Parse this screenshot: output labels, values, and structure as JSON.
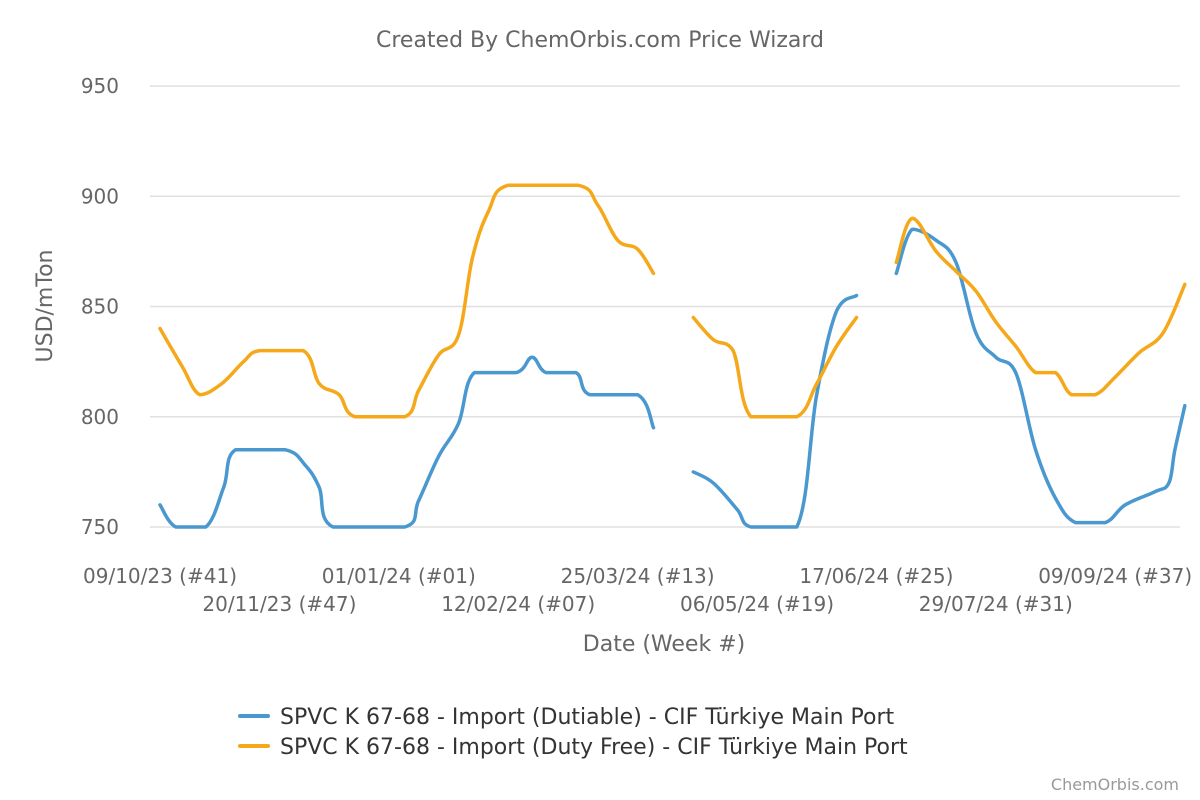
{
  "chart_data": {
    "type": "line",
    "title": "Created By ChemOrbis.com Price Wizard",
    "xlabel": "Date (Week #)",
    "ylabel": "USD/mTon",
    "ylim": [
      750,
      950
    ],
    "yticks": [
      750,
      800,
      850,
      900,
      950
    ],
    "grid": true,
    "legend_position": "bottom",
    "credit": "ChemOrbis.com",
    "x_tick_labels": [
      {
        "week": 0,
        "label": "09/10/23 (#41)"
      },
      {
        "week": 6,
        "label": "20/11/23 (#47)"
      },
      {
        "week": 12,
        "label": "01/01/24 (#01)"
      },
      {
        "week": 18,
        "label": "12/02/24 (#07)"
      },
      {
        "week": 24,
        "label": "25/03/24 (#13)"
      },
      {
        "week": 30,
        "label": "06/05/24 (#19)"
      },
      {
        "week": 36,
        "label": "17/06/24 (#25)"
      },
      {
        "week": 42,
        "label": "29/07/24 (#31)"
      },
      {
        "week": 48,
        "label": "09/09/24 (#37)"
      }
    ],
    "series": [
      {
        "name": "SPVC K 67-68 - Import (Dutiable) - CIF Türkiye Main Port",
        "color": "#4a98d0",
        "segments": [
          [
            [
              0,
              760
            ],
            [
              0.8,
              750
            ],
            [
              2.3,
              750
            ],
            [
              3.2,
              768
            ],
            [
              3.8,
              785
            ],
            [
              6.3,
              785
            ],
            [
              7.3,
              778
            ],
            [
              8,
              768
            ],
            [
              8.7,
              750
            ],
            [
              12.3,
              750
            ],
            [
              13,
              762
            ],
            [
              14,
              782
            ],
            [
              15,
              797
            ],
            [
              15.8,
              820
            ],
            [
              17.9,
              820
            ],
            [
              18.7,
              827
            ],
            [
              19.4,
              820
            ],
            [
              20.9,
              820
            ],
            [
              21.6,
              810
            ],
            [
              24,
              810
            ],
            [
              24.8,
              795
            ]
          ],
          [
            [
              26.8,
              775
            ],
            [
              27.8,
              770
            ],
            [
              29,
              758
            ],
            [
              29.7,
              750
            ],
            [
              32,
              750
            ],
            [
              33,
              810
            ],
            [
              34,
              848
            ],
            [
              35,
              855
            ]
          ],
          [
            [
              37,
              865
            ],
            [
              37.8,
              885
            ],
            [
              39,
              880
            ],
            [
              40,
              870
            ],
            [
              41,
              838
            ],
            [
              42,
              827
            ],
            [
              43,
              820
            ],
            [
              44,
              785
            ],
            [
              45,
              763
            ],
            [
              46,
              752
            ],
            [
              47.5,
              752
            ],
            [
              48.5,
              760
            ],
            [
              50,
              766
            ],
            [
              50.7,
              770
            ],
            [
              51,
              785
            ],
            [
              51.5,
              805
            ]
          ]
        ]
      },
      {
        "name": "SPVC K 67-68 - Import (Duty Free) - CIF Türkiye Main Port",
        "color": "#f5a81a",
        "segments": [
          [
            [
              0,
              840
            ],
            [
              1.1,
              823
            ],
            [
              2,
              810
            ],
            [
              3.1,
              815
            ],
            [
              4.2,
              825
            ],
            [
              5,
              830
            ],
            [
              7.2,
              830
            ],
            [
              8,
              815
            ],
            [
              9,
              810
            ],
            [
              9.8,
              800
            ],
            [
              12.3,
              800
            ],
            [
              13,
              812
            ],
            [
              14,
              828
            ],
            [
              15,
              837
            ],
            [
              15.7,
              872
            ],
            [
              16.5,
              893
            ],
            [
              17.5,
              905
            ],
            [
              21,
              905
            ],
            [
              22,
              896
            ],
            [
              23,
              880
            ],
            [
              24,
              876
            ],
            [
              24.8,
              865
            ]
          ],
          [
            [
              26.8,
              845
            ],
            [
              27.8,
              835
            ],
            [
              28.8,
              830
            ],
            [
              29.7,
              800
            ],
            [
              32,
              800
            ],
            [
              33,
              815
            ],
            [
              34,
              832
            ],
            [
              35,
              845
            ]
          ],
          [
            [
              37,
              870
            ],
            [
              37.8,
              890
            ],
            [
              39,
              875
            ],
            [
              40,
              866
            ],
            [
              41,
              857
            ],
            [
              42,
              843
            ],
            [
              43,
              832
            ],
            [
              44,
              820
            ],
            [
              45,
              820
            ],
            [
              45.8,
              810
            ],
            [
              47,
              810
            ],
            [
              48,
              818
            ],
            [
              49.2,
              829
            ],
            [
              50.4,
              838
            ],
            [
              51.5,
              860
            ]
          ]
        ]
      }
    ]
  }
}
